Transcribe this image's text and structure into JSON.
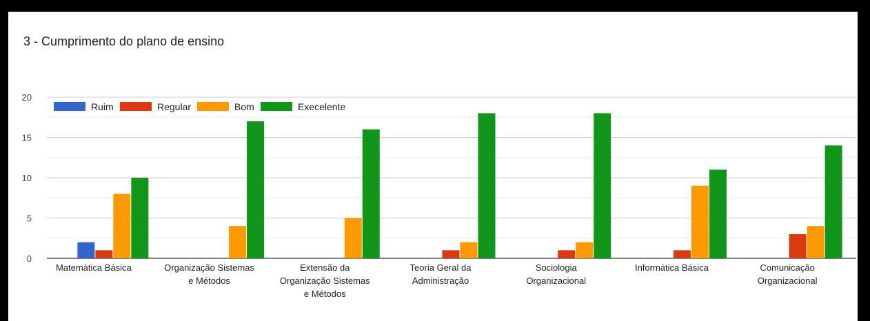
{
  "chart_data": {
    "type": "bar",
    "title": "3 - Cumprimento do plano de ensino",
    "xlabel": "",
    "ylabel": "",
    "ylim": [
      0,
      20
    ],
    "yticks": [
      "0",
      "5",
      "10",
      "15",
      "20"
    ],
    "grid": true,
    "legend_position": "top-left",
    "categories": [
      [
        "Matemática Básica"
      ],
      [
        "Organização Sistemas",
        "e Métodos"
      ],
      [
        "Extensão da",
        "Organização Sistemas",
        "e Métodos"
      ],
      [
        "Teoria Geral da",
        "Administração"
      ],
      [
        "Sociologia",
        "Organizacional"
      ],
      [
        "Informática Básica"
      ],
      [
        "Comunicação",
        "Organizacional"
      ]
    ],
    "series": [
      {
        "name": "Ruim",
        "color": "#3366cc",
        "values": [
          2,
          0,
          0,
          0,
          0,
          0,
          0
        ]
      },
      {
        "name": "Regular",
        "color": "#dc3912",
        "values": [
          1,
          0,
          0,
          1,
          1,
          1,
          3
        ]
      },
      {
        "name": "Bom",
        "color": "#ff9900",
        "values": [
          8,
          4,
          5,
          2,
          2,
          9,
          4
        ]
      },
      {
        "name": "Execelente",
        "color": "#109618",
        "values": [
          10,
          17,
          16,
          18,
          18,
          11,
          14
        ]
      }
    ]
  }
}
